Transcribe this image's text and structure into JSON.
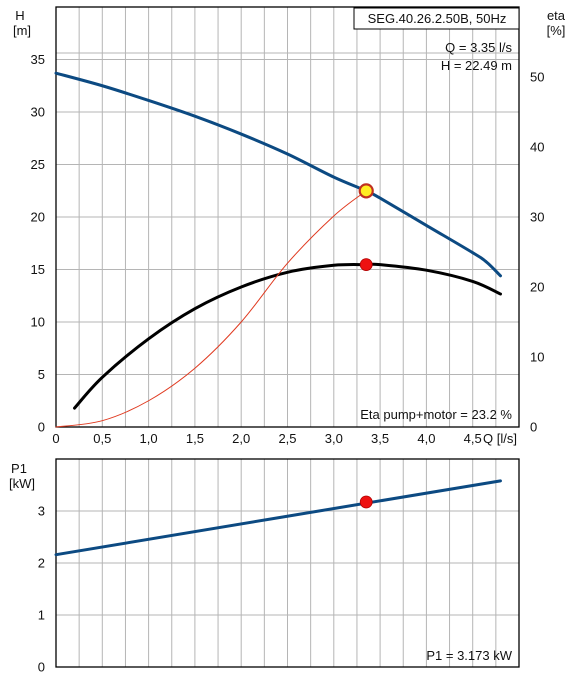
{
  "chart_data": [
    {
      "type": "line",
      "title": "SEG.40.26.2.50B, 50Hz",
      "xlabel": "Q [l/s]",
      "ylabel_left": [
        "H",
        "[m]"
      ],
      "ylabel_right": [
        "eta",
        "[%]"
      ],
      "xlim": [
        0,
        5
      ],
      "ylim_left": [
        0,
        40
      ],
      "ylim_right": [
        0,
        60
      ],
      "x_ticks": [
        0,
        0.5,
        1.0,
        1.5,
        2.0,
        2.5,
        3.0,
        3.5,
        4.0,
        4.5
      ],
      "x_tick_labels": [
        "0",
        "0,5",
        "1,0",
        "1,5",
        "2,0",
        "2,5",
        "3,0",
        "3,5",
        "4,0",
        "4,5"
      ],
      "y_left_ticks": [
        0,
        5,
        10,
        15,
        20,
        25,
        30,
        35
      ],
      "y_right_ticks": [
        0,
        10,
        20,
        30,
        40,
        50
      ],
      "grid": true,
      "series": [
        {
          "axis": "left",
          "color": "#0c4a82",
          "x": [
            0,
            0.5,
            1.0,
            1.5,
            2.0,
            2.5,
            3.0,
            3.35,
            3.5,
            4.0,
            4.5,
            4.65,
            4.8
          ],
          "y": [
            33.7,
            32.5,
            31.1,
            29.6,
            27.9,
            26.0,
            23.8,
            22.49,
            21.8,
            19.2,
            16.6,
            15.7,
            14.4
          ]
        },
        {
          "axis": "right",
          "color": "#000000",
          "x": [
            0.2,
            0.5,
            1.0,
            1.5,
            2.0,
            2.5,
            3.0,
            3.35,
            3.5,
            4.0,
            4.5,
            4.8
          ],
          "y": [
            2.7,
            7.1,
            12.6,
            16.9,
            20.0,
            22.1,
            23.1,
            23.2,
            23.2,
            22.4,
            20.8,
            19.0
          ]
        },
        {
          "axis": "left",
          "color": "#e03a20",
          "x": [
            0,
            0.5,
            1.0,
            1.5,
            2.0,
            2.5,
            3.0,
            3.35
          ],
          "y": [
            0,
            0.6,
            2.5,
            5.6,
            10.0,
            15.6,
            20.1,
            22.49
          ]
        }
      ],
      "operating_point": {
        "x": 3.35,
        "h": 22.49,
        "eta": 23.2
      },
      "annotations": {
        "q_label": "Q = 3.35 l/s",
        "h_label": "H = 22.49 m",
        "eta_label": "Eta pump+motor = 23.2 %"
      }
    },
    {
      "type": "line",
      "ylabel": [
        "P1",
        "[kW]"
      ],
      "xlim": [
        0,
        5
      ],
      "ylim": [
        0,
        4
      ],
      "x_ticks": [
        0,
        0.5,
        1.0,
        1.5,
        2.0,
        2.5,
        3.0,
        3.5,
        4.0,
        4.5
      ],
      "y_ticks": [
        0,
        1,
        2,
        3
      ],
      "grid": true,
      "series": [
        {
          "color": "#0c4a82",
          "x": [
            0,
            4.8
          ],
          "y": [
            2.16,
            3.58
          ]
        }
      ],
      "operating_point": {
        "x": 3.35,
        "p1": 3.173
      },
      "annotations": {
        "p1_label": "P1 = 3.173 kW"
      }
    }
  ],
  "colors": {
    "grid": "#b5b5b5",
    "head_curve": "#0c4a82",
    "eta_curve": "#000000",
    "system_curve": "#e03a20",
    "marker_fill": "#ee1111",
    "marker_highlight": "#ffee22",
    "marker_ring": "#c03020"
  }
}
